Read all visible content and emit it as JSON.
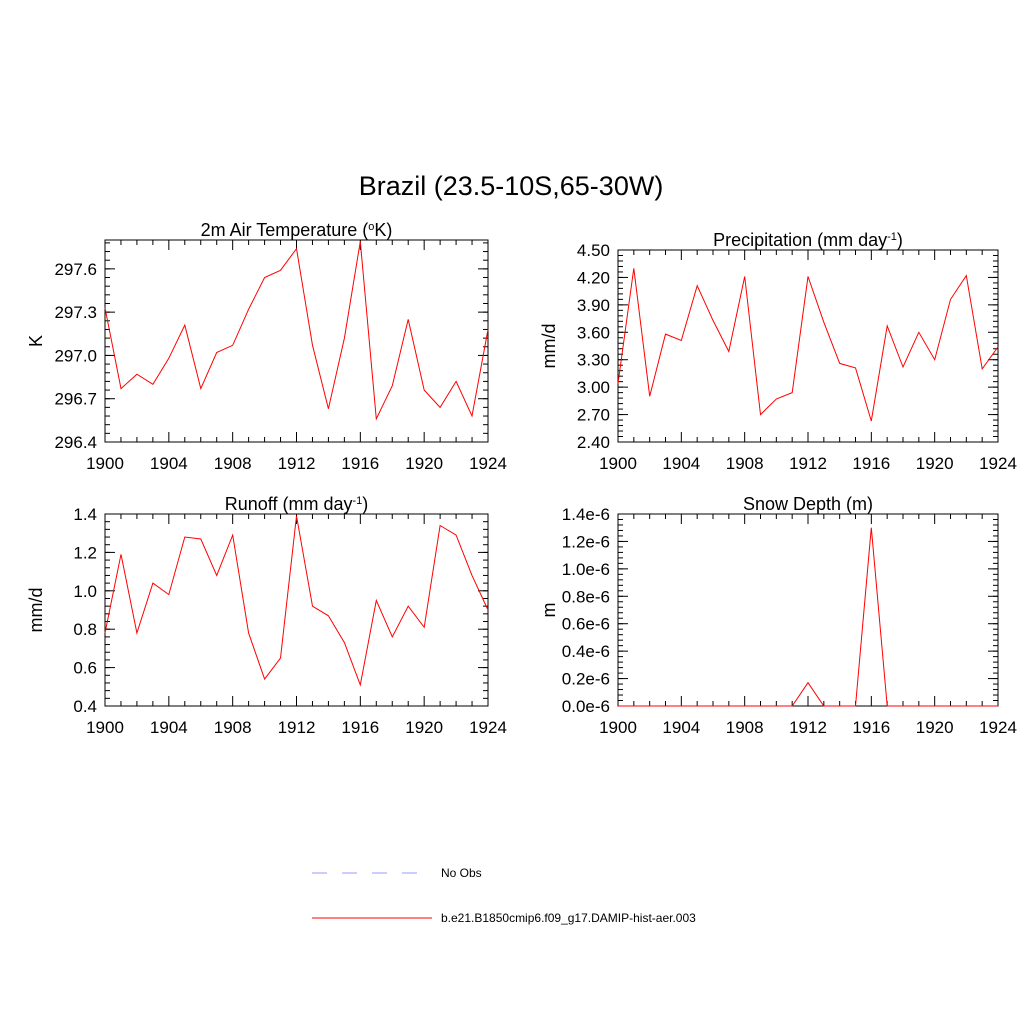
{
  "figure": {
    "title": "Brazil (23.5-10S,65-30W)"
  },
  "legend": {
    "placement": "bottom-center",
    "entries": [
      {
        "label": "No Obs",
        "color": "#9999ff",
        "dash": "dashed"
      },
      {
        "label": "b.e21.B1850cmip6.f09_g17.DAMIP-hist-aer.003",
        "color": "#ff0000",
        "dash": "solid"
      }
    ]
  },
  "chart_data": [
    {
      "type": "line",
      "title_main": "2m Air Temperature (",
      "title_sup": "o",
      "title_tail": "K)",
      "ylabel": "K",
      "xlim": [
        1900,
        1924
      ],
      "ylim": [
        296.4,
        297.8
      ],
      "xticks": [
        "1900",
        "1904",
        "1908",
        "1912",
        "1916",
        "1920",
        "1924"
      ],
      "yticks": [
        "296.4",
        "296.7",
        "297.0",
        "297.3",
        "297.6"
      ],
      "x": [
        1900,
        1901,
        1902,
        1903,
        1904,
        1905,
        1906,
        1907,
        1908,
        1909,
        1910,
        1911,
        1912,
        1913,
        1914,
        1915,
        1916,
        1917,
        1918,
        1919,
        1920,
        1921,
        1922,
        1923,
        1924
      ],
      "series": [
        {
          "color": "#ff0000",
          "values": [
            297.33,
            296.77,
            296.87,
            296.8,
            296.98,
            297.21,
            296.77,
            297.02,
            297.07,
            297.32,
            297.54,
            297.59,
            297.74,
            297.07,
            296.63,
            297.12,
            297.79,
            296.56,
            296.79,
            297.25,
            296.76,
            296.64,
            296.82,
            296.58,
            297.18
          ]
        }
      ]
    },
    {
      "type": "line",
      "title_main": "Precipitation (mm day",
      "title_sup": "-1",
      "title_tail": ")",
      "ylabel": "mm/d",
      "xlim": [
        1900,
        1924
      ],
      "ylim": [
        2.4,
        4.5
      ],
      "xticks": [
        "1900",
        "1904",
        "1908",
        "1912",
        "1916",
        "1920",
        "1924"
      ],
      "yticks": [
        "2.40",
        "2.70",
        "3.00",
        "3.30",
        "3.60",
        "3.90",
        "4.20",
        "4.50"
      ],
      "x": [
        1900,
        1901,
        1902,
        1903,
        1904,
        1905,
        1906,
        1907,
        1908,
        1909,
        1910,
        1911,
        1912,
        1913,
        1914,
        1915,
        1916,
        1917,
        1918,
        1919,
        1920,
        1921,
        1922,
        1923,
        1924
      ],
      "series": [
        {
          "color": "#ff0000",
          "values": [
            3.04,
            4.3,
            2.9,
            3.58,
            3.51,
            4.11,
            3.73,
            3.39,
            4.21,
            2.7,
            2.87,
            2.94,
            4.21,
            3.71,
            3.26,
            3.21,
            2.63,
            3.67,
            3.22,
            3.6,
            3.3,
            3.96,
            4.22,
            3.2,
            3.44
          ]
        }
      ]
    },
    {
      "type": "line",
      "title_main": "Runoff (mm day",
      "title_sup": "-1",
      "title_tail": ")",
      "ylabel": "mm/d",
      "xlim": [
        1900,
        1924
      ],
      "ylim": [
        0.4,
        1.4
      ],
      "xticks": [
        "1900",
        "1904",
        "1908",
        "1912",
        "1916",
        "1920",
        "1924"
      ],
      "yticks": [
        "0.4",
        "0.6",
        "0.8",
        "1.0",
        "1.2",
        "1.4"
      ],
      "x": [
        1900,
        1901,
        1902,
        1903,
        1904,
        1905,
        1906,
        1907,
        1908,
        1909,
        1910,
        1911,
        1912,
        1913,
        1914,
        1915,
        1916,
        1917,
        1918,
        1919,
        1920,
        1921,
        1922,
        1923,
        1924
      ],
      "series": [
        {
          "color": "#ff0000",
          "values": [
            0.78,
            1.19,
            0.78,
            1.04,
            0.98,
            1.28,
            1.27,
            1.08,
            1.29,
            0.78,
            0.54,
            0.65,
            1.39,
            0.92,
            0.87,
            0.73,
            0.51,
            0.95,
            0.76,
            0.92,
            0.81,
            1.34,
            1.29,
            1.08,
            0.9
          ]
        }
      ]
    },
    {
      "type": "line",
      "title_main": "Snow Depth (m)",
      "title_sup": "",
      "title_tail": "",
      "ylabel": "m",
      "xlim": [
        1900,
        1924
      ],
      "ylim": [
        0,
        1.4
      ],
      "ytick_values": [
        0,
        0.2,
        0.4,
        0.6,
        0.8,
        1.0,
        1.2,
        1.4
      ],
      "value_scale_note": "1e-6",
      "xticks": [
        "1900",
        "1904",
        "1908",
        "1912",
        "1916",
        "1920",
        "1924"
      ],
      "yticks": [
        "0.0e-6",
        "0.2e-6",
        "0.4e-6",
        "0.6e-6",
        "0.8e-6",
        "1.0e-6",
        "1.2e-6",
        "1.4e-6"
      ],
      "x": [
        1900,
        1901,
        1902,
        1903,
        1904,
        1905,
        1906,
        1907,
        1908,
        1909,
        1910,
        1911,
        1912,
        1913,
        1914,
        1915,
        1916,
        1917,
        1918,
        1919,
        1920,
        1921,
        1922,
        1923,
        1924
      ],
      "series": [
        {
          "color": "#ff0000",
          "values": [
            0,
            0,
            0,
            0,
            0,
            0,
            0,
            0,
            0,
            0,
            0,
            0,
            0.17,
            0,
            0,
            0,
            1.3,
            0,
            0,
            0,
            0,
            0,
            0,
            0,
            0
          ]
        }
      ]
    }
  ]
}
